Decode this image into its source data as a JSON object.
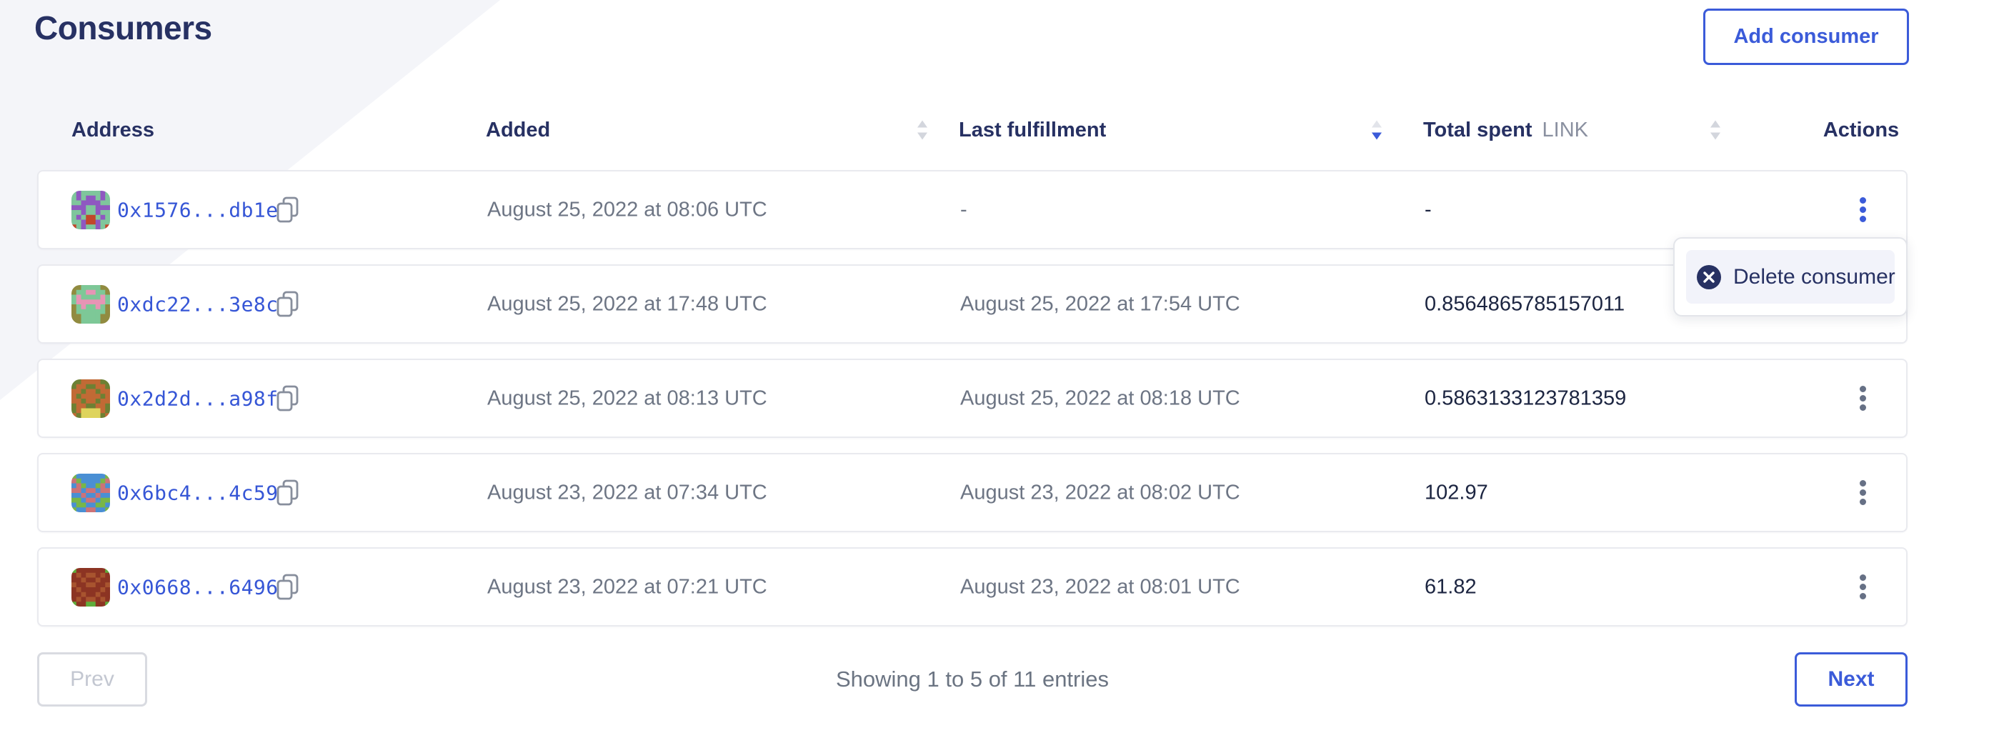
{
  "page": {
    "title": "Consumers"
  },
  "toolbar": {
    "add_consumer_label": "Add consumer"
  },
  "colors": {
    "accent_blue": "#3b5bd9",
    "navy": "#273163",
    "text_gray": "#6d7584",
    "value_dark": "#1c2541",
    "band_bg": "#f4f5f9",
    "card_border": "#e9eaef",
    "menu_item_bg": "#f2f3fa",
    "sort_inactive": "#d3d6dd"
  },
  "table": {
    "headers": {
      "address": "Address",
      "added": "Added",
      "last_fulfillment": "Last fulfillment",
      "total_spent": "Total spent",
      "total_spent_unit": "LINK",
      "actions": "Actions"
    },
    "sort": {
      "active_column": "last_fulfillment",
      "direction": "desc"
    },
    "rows": [
      {
        "address": "0x1576...db1e",
        "added": "August 25, 2022 at 08:06 UTC",
        "last_fulfillment": "-",
        "total_spent": "-",
        "kebab_active": true,
        "avatar": {
          "palette": {
            "g": "#7fc69c",
            "p": "#8f58c1",
            "r": "#c2472a"
          },
          "pixels": [
            "gpggggpg",
            "gpgppgpg",
            "ggppppgg",
            "pppggppp",
            "ggpggpgg",
            "gpgrrgpg",
            "ggprrpgg",
            "rgpggpgr"
          ]
        }
      },
      {
        "address": "0xdc22...3e8c",
        "added": "August 25, 2022 at 17:48 UTC",
        "last_fulfillment": "August 25, 2022 at 17:54 UTC",
        "total_spent": "0.8564865785157011",
        "kebab_active": false,
        "avatar": {
          "palette": {
            "g": "#7dc897",
            "o": "#918b40",
            "k": "#e794b5"
          },
          "pixels": [
            "ooggggoo",
            "oggkkggo",
            "gkggggkg",
            "gkkkkkkg",
            "ogkggkgo",
            "oggggggo",
            "ooggggoo",
            "ooggggoo"
          ]
        }
      },
      {
        "address": "0x2d2d...a98f",
        "added": "August 25, 2022 at 08:13 UTC",
        "last_fulfillment": "August 25, 2022 at 08:18 UTC",
        "total_spent": "0.5863133123781359",
        "kebab_active": false,
        "avatar": {
          "palette": {
            "o": "#c16a35",
            "v": "#6d8033",
            "y": "#ded45c"
          },
          "pixels": [
            "vvoooovv",
            "voovvoov",
            "oovoovoo",
            "ovoooovo",
            "oovoovoo",
            "voovvoov",
            "voyyyyov",
            "ovyyyyvo"
          ]
        }
      },
      {
        "address": "0x6bc4...4c59",
        "added": "August 23, 2022 at 07:34 UTC",
        "last_fulfillment": "August 23, 2022 at 08:02 UTC",
        "total_spent": "102.97",
        "kebab_active": false,
        "avatar": {
          "palette": {
            "b": "#4a8fd4",
            "n": "#79b647",
            "r": "#cd7277"
          },
          "pixels": [
            "nbbbbbbn",
            "rnbbbbnr",
            "brnbbnrb",
            "rrbrrbrr",
            "bbrbbrbb",
            "nnbrrbnn",
            "bnnbbnnb",
            "nbbrrbbn"
          ]
        }
      },
      {
        "address": "0x0668...6496",
        "added": "August 23, 2022 at 07:21 UTC",
        "last_fulfillment": "August 23, 2022 at 08:01 UTC",
        "total_spent": "61.82",
        "kebab_active": false,
        "avatar": {
          "palette": {
            "d": "#8c3423",
            "m": "#a8542f",
            "n": "#5fae3c"
          },
          "pixels": [
            "nddddddn",
            "dmdmmdmd",
            "ddmddmdd",
            "mddmmddm",
            "dmddddmd",
            "ddmddmdd",
            "dmdmmdmd",
            "nddnnddn"
          ]
        }
      }
    ]
  },
  "row_menu": {
    "delete_label": "Delete consumer"
  },
  "pagination": {
    "prev_label": "Prev",
    "next_label": "Next",
    "status": "Showing 1 to 5 of 11 entries"
  }
}
